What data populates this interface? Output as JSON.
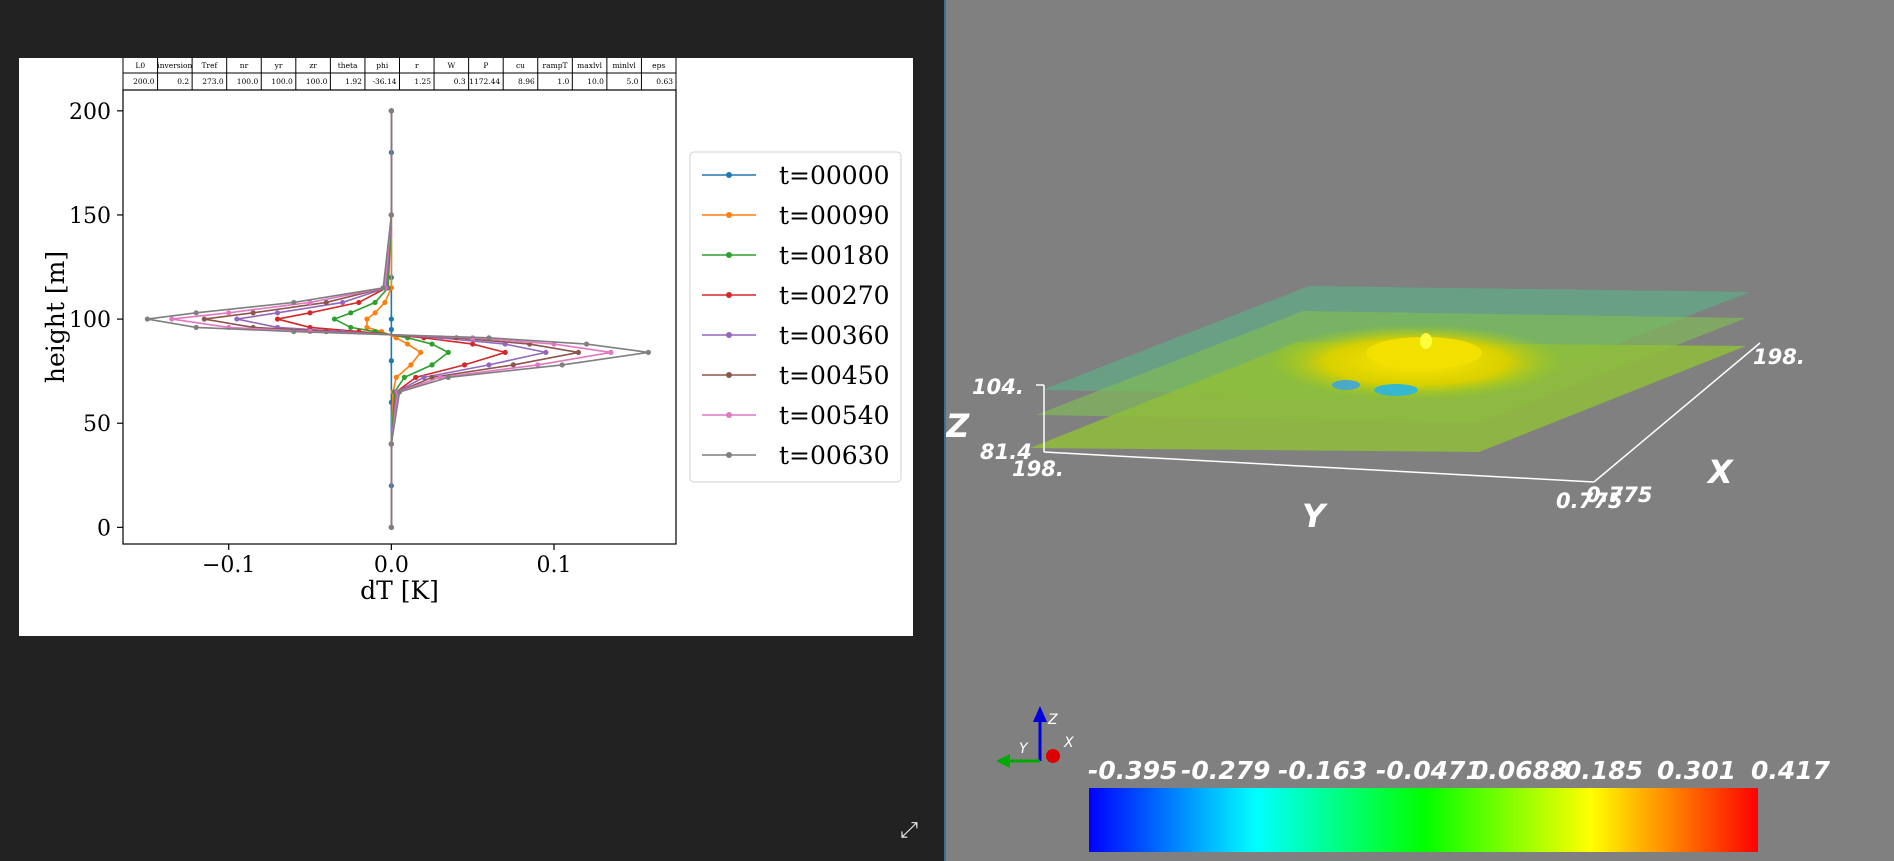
{
  "plot": {
    "param_headers": [
      "L0",
      "inversion",
      "Tref",
      "nr",
      "yr",
      "zr",
      "theta",
      "phi",
      "r",
      "W",
      "P",
      "cu",
      "rampT",
      "maxlvl",
      "minlvl",
      "eps"
    ],
    "param_values": [
      "200.0",
      "0.2",
      "273.0",
      "100.0",
      "100.0",
      "100.0",
      "1.92",
      "-36.14",
      "1.25",
      "0.3",
      "1172.44",
      "8.96",
      "1.0",
      "10.0",
      "5.0",
      "0.63"
    ]
  },
  "chart_data": {
    "type": "line",
    "xlabel": "dT [K]",
    "ylabel": "height [m]",
    "xlim": [
      -0.165,
      0.175
    ],
    "ylim": [
      -8,
      210
    ],
    "xticks": [
      -0.1,
      0.0,
      0.1
    ],
    "xtick_labels": [
      "−0.1",
      "0.0",
      "0.1"
    ],
    "yticks": [
      0,
      50,
      100,
      150,
      200
    ],
    "ytick_labels": [
      "0",
      "50",
      "100",
      "150",
      "200"
    ],
    "grid": false,
    "legend_position": "right",
    "series": [
      {
        "name": "t=00000",
        "color": "#1f77b4",
        "x": [
          0,
          0,
          0,
          0,
          0,
          0,
          0,
          0,
          0,
          0,
          0
        ],
        "y": [
          0,
          20,
          40,
          60,
          80,
          95,
          100,
          120,
          150,
          180,
          200
        ]
      },
      {
        "name": "t=00090",
        "color": "#ff7f0e",
        "x": [
          0,
          0,
          0.001,
          0.003,
          0.012,
          0.018,
          0.01,
          0.003,
          -0.006,
          -0.015,
          -0.015,
          -0.01,
          -0.004,
          0,
          0,
          0
        ],
        "y": [
          0,
          40,
          65,
          72,
          78,
          84,
          88,
          91,
          94,
          96,
          100,
          103,
          108,
          115,
          150,
          200
        ]
      },
      {
        "name": "t=00180",
        "color": "#2ca02c",
        "x": [
          0,
          0,
          0.002,
          0.008,
          0.025,
          0.035,
          0.025,
          0.01,
          -0.01,
          -0.025,
          -0.035,
          -0.025,
          -0.01,
          -0.002,
          0,
          0
        ],
        "y": [
          0,
          40,
          65,
          72,
          78,
          84,
          88,
          91,
          94,
          96,
          100,
          103,
          108,
          115,
          150,
          200
        ]
      },
      {
        "name": "t=00270",
        "color": "#d62728",
        "x": [
          0,
          0,
          0.003,
          0.015,
          0.045,
          0.07,
          0.05,
          0.02,
          -0.02,
          -0.05,
          -0.07,
          -0.05,
          -0.02,
          -0.003,
          0,
          0
        ],
        "y": [
          0,
          40,
          65,
          72,
          78,
          84,
          88,
          91,
          94,
          96,
          100,
          103,
          108,
          115,
          150,
          200
        ]
      },
      {
        "name": "t=00360",
        "color": "#9467bd",
        "x": [
          0,
          0,
          0.003,
          0.02,
          0.06,
          0.095,
          0.07,
          0.03,
          -0.03,
          -0.07,
          -0.095,
          -0.07,
          -0.03,
          -0.003,
          0,
          0
        ],
        "y": [
          0,
          40,
          65,
          72,
          78,
          84,
          88,
          91,
          94,
          96,
          100,
          103,
          108,
          115,
          150,
          200
        ]
      },
      {
        "name": "t=00450",
        "color": "#8c564b",
        "x": [
          0,
          0,
          0.004,
          0.025,
          0.075,
          0.115,
          0.085,
          0.04,
          -0.04,
          -0.085,
          -0.115,
          -0.085,
          -0.04,
          -0.004,
          0,
          0
        ],
        "y": [
          0,
          40,
          65,
          72,
          78,
          84,
          88,
          91,
          94,
          96,
          100,
          103,
          108,
          115,
          150,
          200
        ]
      },
      {
        "name": "t=00540",
        "color": "#e377c2",
        "x": [
          0,
          0,
          0.004,
          0.03,
          0.09,
          0.135,
          0.1,
          0.05,
          -0.05,
          -0.1,
          -0.135,
          -0.1,
          -0.05,
          -0.004,
          0,
          0
        ],
        "y": [
          0,
          40,
          65,
          72,
          78,
          84,
          88,
          91,
          94,
          96,
          100,
          103,
          108,
          115,
          150,
          200
        ]
      },
      {
        "name": "t=00630",
        "color": "#7f7f7f",
        "x": [
          0,
          0,
          0.005,
          0.035,
          0.105,
          0.158,
          0.12,
          0.06,
          -0.06,
          -0.12,
          -0.15,
          -0.12,
          -0.06,
          -0.005,
          0,
          0
        ],
        "y": [
          0,
          40,
          65,
          72,
          78,
          84,
          88,
          91,
          94,
          96,
          100,
          103,
          108,
          115,
          150,
          200
        ]
      }
    ]
  },
  "view3d": {
    "z_max": "104.",
    "z_min": "81.4",
    "y_min": "198.",
    "y_max": "0.775",
    "x_min": "0.775",
    "x_max": "198.",
    "axis_z": "Z",
    "axis_y": "Y",
    "axis_x": "X",
    "triad_z": "Z",
    "triad_y": "Y",
    "triad_x": "X",
    "colorbar_labels": [
      "-0.395",
      "-0.279",
      "-0.163",
      "-0.0471",
      "0.0688",
      "0.185",
      "0.301",
      "0.417"
    ],
    "colorbar_colors": [
      "#0000ff",
      "#00ffff",
      "#00ff00",
      "#ffff00",
      "#ff0000"
    ]
  },
  "icons": {
    "expand": "expand-icon"
  }
}
